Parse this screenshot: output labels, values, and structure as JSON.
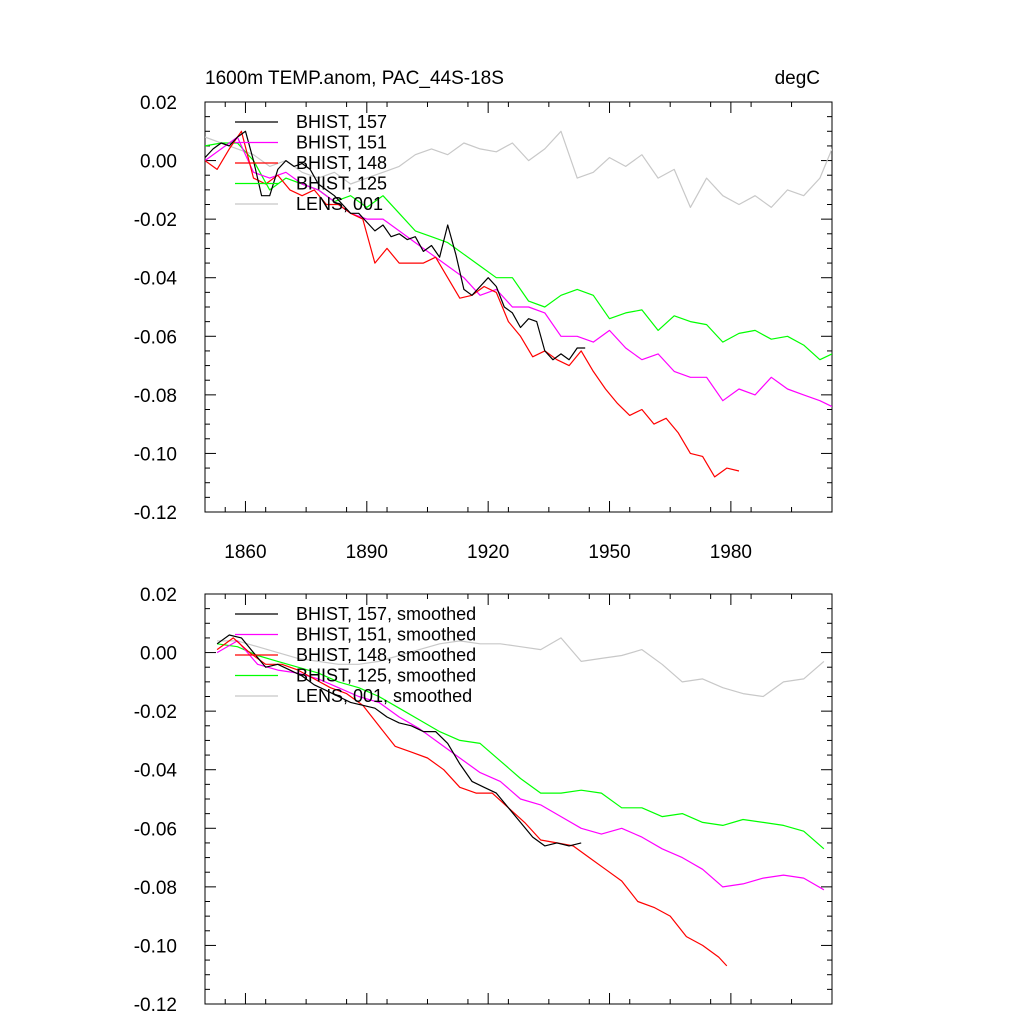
{
  "header": {
    "title_left": "1600m TEMP.anom, PAC_44S-18S",
    "title_right": "degC"
  },
  "chart_data": [
    {
      "type": "line",
      "xlim": [
        1850,
        2005
      ],
      "ylim": [
        -0.12,
        0.02
      ],
      "x_ticks": [
        1860,
        1890,
        1920,
        1950,
        1980
      ],
      "x_tick_labels": [
        "1860",
        "1890",
        "1920",
        "1950",
        "1980"
      ],
      "y_ticks": [
        0.02,
        0.0,
        -0.02,
        -0.04,
        -0.06,
        -0.08,
        -0.1,
        -0.12
      ],
      "y_tick_labels": [
        "0.02",
        "0.00",
        "-0.02",
        "-0.04",
        "-0.06",
        "-0.08",
        "-0.10",
        "-0.12"
      ],
      "legend_position": "top-left",
      "grid": false,
      "series": [
        {
          "name": "BHIST, 157",
          "color": "#000000",
          "x": [
            1850,
            1852,
            1854,
            1856,
            1858,
            1860,
            1862,
            1864,
            1866,
            1868,
            1870,
            1872,
            1874,
            1876,
            1878,
            1880,
            1882,
            1884,
            1886,
            1888,
            1890,
            1892,
            1894,
            1896,
            1898,
            1900,
            1902,
            1904,
            1906,
            1908,
            1910,
            1912,
            1914,
            1916,
            1918,
            1920,
            1922,
            1924,
            1926,
            1928,
            1930,
            1932,
            1934,
            1936,
            1938,
            1940,
            1942,
            1944
          ],
          "y": [
            0.001,
            0.004,
            0.006,
            0.005,
            0.008,
            0.01,
            0.0,
            -0.012,
            -0.012,
            -0.003,
            0.0,
            -0.002,
            -0.001,
            -0.003,
            -0.008,
            -0.01,
            -0.012,
            -0.015,
            -0.018,
            -0.018,
            -0.021,
            -0.024,
            -0.022,
            -0.026,
            -0.025,
            -0.027,
            -0.026,
            -0.031,
            -0.029,
            -0.033,
            -0.022,
            -0.032,
            -0.044,
            -0.046,
            -0.043,
            -0.04,
            -0.043,
            -0.05,
            -0.052,
            -0.057,
            -0.054,
            -0.055,
            -0.065,
            -0.068,
            -0.066,
            -0.068,
            -0.064,
            -0.064
          ]
        },
        {
          "name": "BHIST, 151",
          "color": "#ff00ff",
          "x": [
            1850,
            1854,
            1858,
            1862,
            1866,
            1870,
            1874,
            1878,
            1882,
            1886,
            1890,
            1894,
            1898,
            1902,
            1906,
            1910,
            1914,
            1918,
            1922,
            1926,
            1930,
            1934,
            1938,
            1942,
            1946,
            1950,
            1954,
            1958,
            1962,
            1966,
            1970,
            1974,
            1978,
            1982,
            1986,
            1990,
            1994,
            1998,
            2002,
            2005
          ],
          "y": [
            0.0,
            0.004,
            0.008,
            -0.004,
            -0.006,
            -0.004,
            -0.008,
            -0.01,
            -0.014,
            -0.018,
            -0.02,
            -0.02,
            -0.024,
            -0.028,
            -0.032,
            -0.036,
            -0.04,
            -0.046,
            -0.044,
            -0.05,
            -0.05,
            -0.052,
            -0.06,
            -0.06,
            -0.062,
            -0.058,
            -0.064,
            -0.068,
            -0.066,
            -0.072,
            -0.074,
            -0.074,
            -0.082,
            -0.078,
            -0.08,
            -0.074,
            -0.078,
            -0.08,
            -0.082,
            -0.084
          ]
        },
        {
          "name": "BHIST, 148",
          "color": "#ff0000",
          "x": [
            1850,
            1853,
            1856,
            1859,
            1862,
            1865,
            1868,
            1871,
            1874,
            1877,
            1880,
            1883,
            1886,
            1889,
            1892,
            1895,
            1898,
            1901,
            1904,
            1907,
            1910,
            1913,
            1916,
            1919,
            1922,
            1925,
            1928,
            1931,
            1934,
            1937,
            1940,
            1943,
            1946,
            1949,
            1952,
            1955,
            1958,
            1961,
            1964,
            1967,
            1970,
            1973,
            1976,
            1979,
            1982
          ],
          "y": [
            0.0,
            -0.003,
            0.004,
            0.01,
            -0.006,
            -0.008,
            -0.005,
            -0.01,
            -0.012,
            -0.01,
            -0.015,
            -0.015,
            -0.018,
            -0.02,
            -0.035,
            -0.03,
            -0.035,
            -0.035,
            -0.035,
            -0.033,
            -0.04,
            -0.047,
            -0.046,
            -0.043,
            -0.045,
            -0.055,
            -0.06,
            -0.067,
            -0.065,
            -0.068,
            -0.07,
            -0.065,
            -0.072,
            -0.078,
            -0.083,
            -0.087,
            -0.085,
            -0.09,
            -0.088,
            -0.093,
            -0.1,
            -0.101,
            -0.108,
            -0.105,
            -0.106
          ]
        },
        {
          "name": "BHIST, 125",
          "color": "#00ff00",
          "x": [
            1850,
            1854,
            1858,
            1862,
            1866,
            1870,
            1874,
            1878,
            1882,
            1886,
            1890,
            1894,
            1898,
            1902,
            1906,
            1910,
            1914,
            1918,
            1922,
            1926,
            1930,
            1934,
            1938,
            1942,
            1946,
            1950,
            1954,
            1958,
            1962,
            1966,
            1970,
            1974,
            1978,
            1982,
            1986,
            1990,
            1994,
            1998,
            2002,
            2005
          ],
          "y": [
            0.005,
            0.006,
            0.006,
            0.0,
            -0.01,
            -0.006,
            -0.008,
            -0.01,
            -0.014,
            -0.012,
            -0.016,
            -0.012,
            -0.018,
            -0.024,
            -0.026,
            -0.028,
            -0.032,
            -0.036,
            -0.04,
            -0.04,
            -0.048,
            -0.05,
            -0.046,
            -0.044,
            -0.046,
            -0.054,
            -0.052,
            -0.051,
            -0.058,
            -0.053,
            -0.055,
            -0.056,
            -0.062,
            -0.059,
            -0.058,
            -0.061,
            -0.06,
            -0.063,
            -0.068,
            -0.066
          ]
        },
        {
          "name": "LENS, 001",
          "color": "#c8c8c8",
          "x": [
            1850,
            1854,
            1858,
            1862,
            1866,
            1870,
            1874,
            1878,
            1882,
            1886,
            1890,
            1894,
            1898,
            1902,
            1906,
            1910,
            1914,
            1918,
            1922,
            1926,
            1930,
            1934,
            1938,
            1942,
            1946,
            1950,
            1954,
            1958,
            1962,
            1966,
            1970,
            1974,
            1978,
            1982,
            1986,
            1990,
            1994,
            1998,
            2002,
            2005
          ],
          "y": [
            0.008,
            0.006,
            0.004,
            0.002,
            -0.002,
            0.0,
            -0.004,
            -0.006,
            -0.004,
            -0.008,
            -0.006,
            -0.004,
            -0.002,
            0.002,
            0.004,
            0.002,
            0.006,
            0.004,
            0.003,
            0.006,
            0.0,
            0.004,
            0.01,
            -0.006,
            -0.004,
            0.001,
            -0.002,
            0.002,
            -0.006,
            -0.003,
            -0.016,
            -0.006,
            -0.012,
            -0.015,
            -0.012,
            -0.016,
            -0.01,
            -0.012,
            -0.006,
            0.004
          ]
        }
      ]
    },
    {
      "type": "line",
      "xlim": [
        1850,
        2005
      ],
      "ylim": [
        -0.12,
        0.02
      ],
      "x_ticks": [
        1860,
        1890,
        1920,
        1950,
        1980
      ],
      "x_tick_labels": [],
      "y_ticks": [
        0.02,
        0.0,
        -0.02,
        -0.04,
        -0.06,
        -0.08,
        -0.1,
        -0.12
      ],
      "y_tick_labels": [
        "0.02",
        "0.00",
        "-0.02",
        "-0.04",
        "-0.06",
        "-0.08",
        "-0.10",
        "-0.12"
      ],
      "legend_position": "top-left",
      "grid": false,
      "series": [
        {
          "name": "BHIST, 157, smoothed",
          "color": "#000000",
          "x": [
            1853,
            1856,
            1859,
            1862,
            1865,
            1868,
            1871,
            1874,
            1877,
            1880,
            1883,
            1886,
            1889,
            1892,
            1895,
            1898,
            1901,
            1904,
            1907,
            1910,
            1913,
            1916,
            1919,
            1922,
            1925,
            1928,
            1931,
            1934,
            1937,
            1940,
            1943
          ],
          "y": [
            0.003,
            0.006,
            0.005,
            0.0,
            -0.005,
            -0.004,
            -0.006,
            -0.008,
            -0.011,
            -0.013,
            -0.015,
            -0.017,
            -0.018,
            -0.019,
            -0.022,
            -0.024,
            -0.025,
            -0.027,
            -0.027,
            -0.031,
            -0.038,
            -0.044,
            -0.046,
            -0.048,
            -0.053,
            -0.058,
            -0.063,
            -0.066,
            -0.065,
            -0.066,
            -0.065
          ]
        },
        {
          "name": "BHIST, 151, smoothed",
          "color": "#ff00ff",
          "x": [
            1853,
            1858,
            1863,
            1868,
            1873,
            1878,
            1883,
            1888,
            1893,
            1898,
            1903,
            1908,
            1913,
            1918,
            1923,
            1928,
            1933,
            1938,
            1943,
            1948,
            1953,
            1958,
            1963,
            1968,
            1973,
            1978,
            1983,
            1988,
            1993,
            1998,
            2003
          ],
          "y": [
            0.0,
            0.004,
            -0.004,
            -0.006,
            -0.007,
            -0.009,
            -0.012,
            -0.015,
            -0.017,
            -0.022,
            -0.026,
            -0.031,
            -0.036,
            -0.041,
            -0.044,
            -0.05,
            -0.052,
            -0.056,
            -0.06,
            -0.062,
            -0.06,
            -0.063,
            -0.067,
            -0.07,
            -0.074,
            -0.08,
            -0.079,
            -0.077,
            -0.076,
            -0.077,
            -0.081
          ]
        },
        {
          "name": "BHIST, 148, smoothed",
          "color": "#ff0000",
          "x": [
            1853,
            1857,
            1861,
            1865,
            1869,
            1873,
            1877,
            1881,
            1885,
            1889,
            1893,
            1897,
            1901,
            1905,
            1909,
            1913,
            1917,
            1921,
            1925,
            1929,
            1933,
            1937,
            1941,
            1945,
            1949,
            1953,
            1957,
            1961,
            1965,
            1969,
            1973,
            1977,
            1979
          ],
          "y": [
            0.001,
            0.005,
            0.0,
            -0.004,
            -0.004,
            -0.006,
            -0.009,
            -0.012,
            -0.014,
            -0.018,
            -0.025,
            -0.032,
            -0.034,
            -0.036,
            -0.04,
            -0.046,
            -0.048,
            -0.048,
            -0.053,
            -0.058,
            -0.064,
            -0.065,
            -0.066,
            -0.07,
            -0.074,
            -0.078,
            -0.085,
            -0.087,
            -0.09,
            -0.097,
            -0.1,
            -0.104,
            -0.107
          ]
        },
        {
          "name": "BHIST, 125, smoothed",
          "color": "#00ff00",
          "x": [
            1853,
            1858,
            1863,
            1868,
            1873,
            1878,
            1883,
            1888,
            1893,
            1898,
            1903,
            1908,
            1913,
            1918,
            1923,
            1928,
            1933,
            1938,
            1943,
            1948,
            1953,
            1958,
            1963,
            1968,
            1973,
            1978,
            1983,
            1988,
            1993,
            1998,
            2003
          ],
          "y": [
            0.003,
            0.002,
            -0.001,
            -0.003,
            -0.005,
            -0.007,
            -0.01,
            -0.012,
            -0.015,
            -0.019,
            -0.023,
            -0.027,
            -0.03,
            -0.031,
            -0.037,
            -0.043,
            -0.048,
            -0.048,
            -0.047,
            -0.048,
            -0.053,
            -0.053,
            -0.056,
            -0.055,
            -0.058,
            -0.059,
            -0.057,
            -0.058,
            -0.059,
            -0.061,
            -0.067
          ]
        },
        {
          "name": "LENS, 001, smoothed",
          "color": "#c8c8c8",
          "x": [
            1853,
            1858,
            1863,
            1868,
            1873,
            1878,
            1883,
            1888,
            1893,
            1898,
            1903,
            1908,
            1913,
            1918,
            1923,
            1928,
            1933,
            1938,
            1943,
            1948,
            1953,
            1958,
            1963,
            1968,
            1973,
            1978,
            1983,
            1988,
            1993,
            1998,
            2003
          ],
          "y": [
            0.004,
            0.004,
            0.002,
            0.0,
            -0.002,
            -0.003,
            -0.004,
            -0.004,
            -0.003,
            -0.001,
            0.001,
            0.003,
            0.004,
            0.003,
            0.003,
            0.002,
            0.001,
            0.005,
            -0.003,
            -0.002,
            -0.001,
            0.001,
            -0.004,
            -0.01,
            -0.009,
            -0.012,
            -0.014,
            -0.015,
            -0.01,
            -0.009,
            -0.003
          ]
        }
      ]
    }
  ]
}
